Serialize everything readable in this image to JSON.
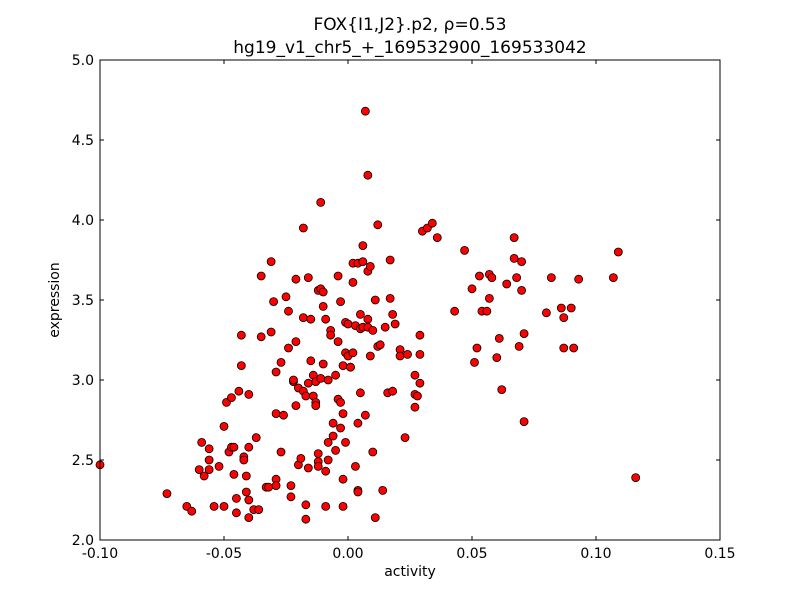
{
  "chart_data": {
    "type": "scatter",
    "title": [
      "FOX{I1,J2}.p2, ρ=0.53",
      "hg19_v1_chr5_+_169532900_169533042"
    ],
    "xlabel": "activity",
    "ylabel": "expression",
    "xlim": [
      -0.1,
      0.15
    ],
    "ylim": [
      2.0,
      5.0
    ],
    "xticks": [
      "-0.10",
      "-0.05",
      "0.00",
      "0.05",
      "0.10",
      "0.15"
    ],
    "yticks": [
      "2.0",
      "2.5",
      "3.0",
      "3.5",
      "4.0",
      "4.5",
      "5.0"
    ],
    "grid": false,
    "marker_color": "#ff0000",
    "marker_edge": "#000000",
    "points": [
      [
        -0.1,
        2.47
      ],
      [
        -0.073,
        2.29
      ],
      [
        -0.065,
        2.21
      ],
      [
        -0.063,
        2.18
      ],
      [
        -0.06,
        2.44
      ],
      [
        -0.059,
        2.61
      ],
      [
        -0.058,
        2.4
      ],
      [
        -0.056,
        2.57
      ],
      [
        -0.056,
        2.5
      ],
      [
        -0.056,
        2.44
      ],
      [
        -0.054,
        2.21
      ],
      [
        -0.052,
        2.46
      ],
      [
        -0.05,
        2.21
      ],
      [
        -0.05,
        2.71
      ],
      [
        -0.049,
        2.86
      ],
      [
        -0.048,
        2.55
      ],
      [
        -0.047,
        2.58
      ],
      [
        -0.047,
        2.89
      ],
      [
        -0.046,
        2.58
      ],
      [
        -0.046,
        2.41
      ],
      [
        -0.045,
        2.26
      ],
      [
        -0.045,
        2.17
      ],
      [
        -0.044,
        2.93
      ],
      [
        -0.043,
        3.28
      ],
      [
        -0.043,
        3.09
      ],
      [
        -0.042,
        2.52
      ],
      [
        -0.042,
        2.5
      ],
      [
        -0.041,
        2.4
      ],
      [
        -0.041,
        2.3
      ],
      [
        -0.04,
        2.25
      ],
      [
        -0.04,
        2.58
      ],
      [
        -0.04,
        2.91
      ],
      [
        -0.04,
        2.14
      ],
      [
        -0.038,
        2.19
      ],
      [
        -0.037,
        2.64
      ],
      [
        -0.036,
        2.19
      ],
      [
        -0.035,
        3.65
      ],
      [
        -0.035,
        3.27
      ],
      [
        -0.031,
        3.74
      ],
      [
        -0.033,
        2.33
      ],
      [
        -0.032,
        2.33
      ],
      [
        -0.031,
        3.3
      ],
      [
        -0.03,
        3.49
      ],
      [
        -0.029,
        2.79
      ],
      [
        -0.029,
        2.38
      ],
      [
        -0.029,
        2.34
      ],
      [
        -0.029,
        3.05
      ],
      [
        -0.027,
        3.11
      ],
      [
        -0.027,
        2.55
      ],
      [
        -0.026,
        2.78
      ],
      [
        -0.025,
        3.52
      ],
      [
        -0.024,
        3.2
      ],
      [
        -0.024,
        3.43
      ],
      [
        -0.023,
        2.34
      ],
      [
        -0.023,
        2.27
      ],
      [
        -0.022,
        2.99
      ],
      [
        -0.022,
        3.0
      ],
      [
        -0.021,
        3.63
      ],
      [
        -0.021,
        2.84
      ],
      [
        -0.021,
        3.24
      ],
      [
        -0.02,
        2.95
      ],
      [
        -0.02,
        2.47
      ],
      [
        -0.019,
        2.51
      ],
      [
        -0.018,
        3.95
      ],
      [
        -0.018,
        2.93
      ],
      [
        -0.018,
        3.39
      ],
      [
        -0.017,
        2.9
      ],
      [
        -0.017,
        2.22
      ],
      [
        -0.017,
        2.13
      ],
      [
        -0.016,
        2.45
      ],
      [
        -0.016,
        2.98
      ],
      [
        -0.016,
        3.64
      ],
      [
        -0.015,
        3.38
      ],
      [
        -0.015,
        3.12
      ],
      [
        -0.014,
        3.03
      ],
      [
        -0.014,
        2.9
      ],
      [
        -0.013,
        2.99
      ],
      [
        -0.013,
        2.86
      ],
      [
        -0.013,
        2.84
      ],
      [
        -0.012,
        2.49
      ],
      [
        -0.012,
        2.54
      ],
      [
        -0.012,
        3.56
      ],
      [
        -0.012,
        2.46
      ],
      [
        -0.011,
        3.01
      ],
      [
        -0.011,
        3.57
      ],
      [
        -0.011,
        4.11
      ],
      [
        -0.01,
        3.1
      ],
      [
        -0.01,
        3.46
      ],
      [
        -0.01,
        3.55
      ],
      [
        -0.009,
        2.43
      ],
      [
        -0.009,
        3.38
      ],
      [
        -0.009,
        2.21
      ],
      [
        -0.008,
        2.5
      ],
      [
        -0.008,
        3.0
      ],
      [
        -0.008,
        2.61
      ],
      [
        -0.007,
        3.31
      ],
      [
        -0.007,
        3.28
      ],
      [
        -0.006,
        2.65
      ],
      [
        -0.006,
        2.73
      ],
      [
        -0.005,
        3.03
      ],
      [
        -0.005,
        2.56
      ],
      [
        -0.004,
        2.88
      ],
      [
        -0.004,
        3.65
      ],
      [
        -0.004,
        3.24
      ],
      [
        -0.003,
        2.86
      ],
      [
        -0.003,
        3.49
      ],
      [
        -0.003,
        2.7
      ],
      [
        -0.002,
        2.38
      ],
      [
        -0.002,
        2.21
      ],
      [
        -0.002,
        3.09
      ],
      [
        -0.002,
        2.79
      ],
      [
        -0.001,
        3.17
      ],
      [
        -0.001,
        3.36
      ],
      [
        -0.001,
        2.61
      ],
      [
        0.0,
        3.15
      ],
      [
        0.0,
        3.35
      ],
      [
        0.001,
        3.08
      ],
      [
        0.001,
        3.08
      ],
      [
        0.002,
        3.17
      ],
      [
        0.002,
        3.73
      ],
      [
        0.002,
        3.61
      ],
      [
        0.003,
        3.34
      ],
      [
        0.003,
        2.46
      ],
      [
        0.004,
        3.73
      ],
      [
        0.004,
        2.31
      ],
      [
        0.004,
        2.3
      ],
      [
        0.004,
        2.73
      ],
      [
        0.005,
        2.92
      ],
      [
        0.005,
        3.41
      ],
      [
        0.005,
        3.32
      ],
      [
        0.006,
        3.33
      ],
      [
        0.006,
        3.84
      ],
      [
        0.006,
        3.74
      ],
      [
        0.007,
        2.78
      ],
      [
        0.007,
        4.68
      ],
      [
        0.008,
        4.28
      ],
      [
        0.008,
        3.68
      ],
      [
        0.008,
        3.38
      ],
      [
        0.008,
        3.33
      ],
      [
        0.009,
        3.15
      ],
      [
        0.009,
        3.71
      ],
      [
        0.01,
        2.55
      ],
      [
        0.01,
        3.31
      ],
      [
        0.011,
        3.5
      ],
      [
        0.011,
        2.14
      ],
      [
        0.012,
        3.97
      ],
      [
        0.012,
        3.21
      ],
      [
        0.013,
        3.22
      ],
      [
        0.014,
        2.31
      ],
      [
        0.015,
        3.33
      ],
      [
        0.016,
        2.92
      ],
      [
        0.017,
        3.51
      ],
      [
        0.017,
        3.75
      ],
      [
        0.018,
        3.41
      ],
      [
        0.018,
        2.93
      ],
      [
        0.019,
        3.35
      ],
      [
        0.021,
        3.19
      ],
      [
        0.021,
        3.15
      ],
      [
        0.023,
        2.64
      ],
      [
        0.024,
        3.16
      ],
      [
        0.027,
        3.03
      ],
      [
        0.027,
        2.83
      ],
      [
        0.027,
        2.91
      ],
      [
        0.028,
        2.9
      ],
      [
        0.029,
        3.28
      ],
      [
        0.029,
        3.16
      ],
      [
        0.029,
        2.98
      ],
      [
        0.03,
        3.93
      ],
      [
        0.032,
        3.95
      ],
      [
        0.034,
        3.98
      ],
      [
        0.036,
        3.89
      ],
      [
        0.043,
        3.43
      ],
      [
        0.047,
        3.81
      ],
      [
        0.05,
        3.57
      ],
      [
        0.051,
        3.11
      ],
      [
        0.052,
        3.2
      ],
      [
        0.053,
        3.65
      ],
      [
        0.054,
        3.43
      ],
      [
        0.056,
        3.43
      ],
      [
        0.057,
        3.51
      ],
      [
        0.057,
        3.66
      ],
      [
        0.058,
        3.64
      ],
      [
        0.06,
        3.14
      ],
      [
        0.061,
        3.26
      ],
      [
        0.062,
        2.94
      ],
      [
        0.064,
        3.6
      ],
      [
        0.067,
        3.89
      ],
      [
        0.067,
        3.76
      ],
      [
        0.068,
        3.64
      ],
      [
        0.07,
        3.56
      ],
      [
        0.069,
        3.21
      ],
      [
        0.07,
        3.74
      ],
      [
        0.071,
        3.29
      ],
      [
        0.071,
        2.74
      ],
      [
        0.08,
        3.42
      ],
      [
        0.082,
        3.64
      ],
      [
        0.086,
        3.45
      ],
      [
        0.087,
        3.39
      ],
      [
        0.087,
        3.2
      ],
      [
        0.09,
        3.45
      ],
      [
        0.091,
        3.2
      ],
      [
        0.093,
        3.63
      ],
      [
        0.107,
        3.64
      ],
      [
        0.109,
        3.8
      ],
      [
        0.116,
        2.39
      ]
    ]
  }
}
